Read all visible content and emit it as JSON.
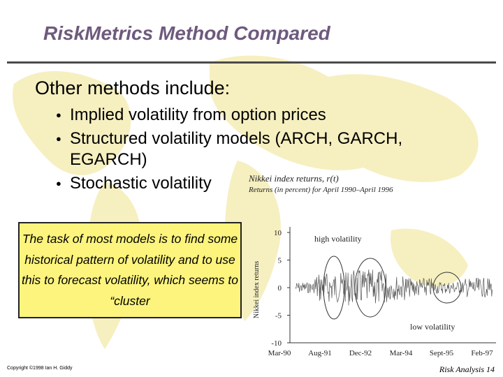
{
  "slide": {
    "title": "RiskMetrics Method Compared",
    "subheading": "Other methods include:",
    "bullets": [
      {
        "text": "Implied volatility from option prices"
      },
      {
        "text": "Structured volatility models (ARCH, GARCH, EGARCH)"
      },
      {
        "text": "Stochastic volatility"
      }
    ],
    "bullet_glyph": "●",
    "callout": "The task of most models is to find some historical pattern of volatility and to use this to forecast volatility, which seems to “cluster",
    "footer_left": "Copyright ©1998 Ian H. Giddy",
    "footer_right": "Risk Analysis 14"
  },
  "colors": {
    "title": "#6e5a7d",
    "map_background": "#f6efc0",
    "callout_fill": "#fcf47d",
    "chart_trace": "#555555"
  },
  "chart_data": {
    "type": "line",
    "title": "Nikkei index returns, r(t)",
    "subtitle": "Returns (in percent) for April 1990–April 1996",
    "ylabel": "Nikkei index returns",
    "xlabel": "",
    "x_ticks": [
      "Mar-90",
      "Aug-91",
      "Dec-92",
      "Mar-94",
      "Sept-95",
      "Feb-97"
    ],
    "y_ticks": [
      10,
      5,
      0,
      -5,
      -10
    ],
    "ylim": [
      -10,
      10
    ],
    "series": [
      {
        "values": []
      }
    ],
    "annotations": [
      "high volatility",
      "low volatility"
    ],
    "grid": false
  }
}
